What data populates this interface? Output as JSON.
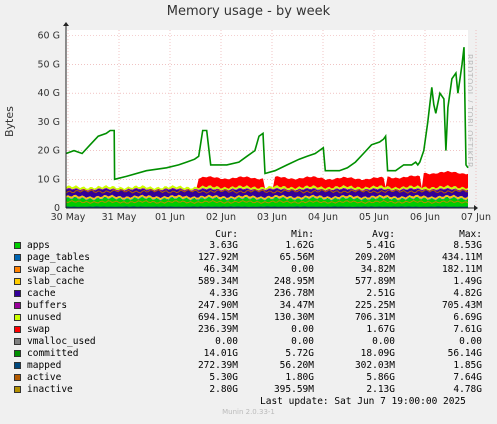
{
  "title": "Memory usage - by week",
  "side_text": "RRDTOOL / TOBI OETIKER",
  "footer_text": "Last update:  Sat Jun  7 19:00:00 2025",
  "munin_version": "Munin 2.0.33-1",
  "chart_data": {
    "type": "area",
    "title": "Memory usage - by week",
    "ylabel": "Bytes",
    "ylim": [
      0,
      62
    ],
    "y_ticks": [
      "0",
      "10 G",
      "20 G",
      "30 G",
      "40 G",
      "50 G",
      "60 G"
    ],
    "x_ticks": [
      "30 May",
      "31 May",
      "01 Jun",
      "02 Jun",
      "03 Jun",
      "04 Jun",
      "05 Jun",
      "06 Jun",
      "07 Jun"
    ],
    "grid": true,
    "legend_position": "bottom",
    "legend_headers": [
      "Cur:",
      "Min:",
      "Avg:",
      "Max:"
    ],
    "series": [
      {
        "name": "apps",
        "color": "#00cc00",
        "cur": "3.63G",
        "min": "1.62G",
        "avg": "5.41G",
        "max": "8.53G"
      },
      {
        "name": "page_tables",
        "color": "#0066b3",
        "cur": "127.92M",
        "min": "65.56M",
        "avg": "209.20M",
        "max": "434.11M"
      },
      {
        "name": "swap_cache",
        "color": "#ff8000",
        "cur": "46.34M",
        "min": "0.00",
        "avg": "34.82M",
        "max": "182.11M"
      },
      {
        "name": "slab_cache",
        "color": "#ffcc00",
        "cur": "589.34M",
        "min": "248.95M",
        "avg": "577.89M",
        "max": "1.49G"
      },
      {
        "name": "cache",
        "color": "#330099",
        "cur": "4.33G",
        "min": "236.78M",
        "avg": "2.51G",
        "max": "4.82G"
      },
      {
        "name": "buffers",
        "color": "#990099",
        "cur": "247.90M",
        "min": "34.47M",
        "avg": "225.25M",
        "max": "705.43M"
      },
      {
        "name": "unused",
        "color": "#ccff00",
        "cur": "694.15M",
        "min": "130.30M",
        "avg": "706.31M",
        "max": "6.69G"
      },
      {
        "name": "swap",
        "color": "#ff0000",
        "cur": "236.39M",
        "min": "0.00",
        "avg": "1.67G",
        "max": "7.61G"
      },
      {
        "name": "vmalloc_used",
        "color": "#808080",
        "cur": "0.00",
        "min": "0.00",
        "avg": "0.00",
        "max": "0.00"
      },
      {
        "name": "committed",
        "color": "#008f00",
        "cur": "14.01G",
        "min": "5.72G",
        "avg": "18.09G",
        "max": "56.14G"
      },
      {
        "name": "mapped",
        "color": "#00487d",
        "cur": "272.39M",
        "min": "56.20M",
        "avg": "302.03M",
        "max": "1.85G"
      },
      {
        "name": "active",
        "color": "#b35a00",
        "cur": "5.30G",
        "min": "1.80G",
        "avg": "5.86G",
        "max": "7.64G"
      },
      {
        "name": "inactive",
        "color": "#b38f00",
        "cur": "2.80G",
        "min": "395.59M",
        "avg": "2.13G",
        "max": "4.78G"
      }
    ],
    "committed_profile": [
      [
        0,
        19
      ],
      [
        0.02,
        20
      ],
      [
        0.04,
        19
      ],
      [
        0.06,
        22
      ],
      [
        0.08,
        25
      ],
      [
        0.1,
        26
      ],
      [
        0.11,
        27
      ],
      [
        0.12,
        27
      ],
      [
        0.121,
        10
      ],
      [
        0.15,
        11
      ],
      [
        0.2,
        13
      ],
      [
        0.25,
        14
      ],
      [
        0.28,
        15
      ],
      [
        0.3,
        16
      ],
      [
        0.32,
        17
      ],
      [
        0.33,
        18
      ],
      [
        0.34,
        27
      ],
      [
        0.35,
        27
      ],
      [
        0.36,
        15
      ],
      [
        0.4,
        15
      ],
      [
        0.43,
        16
      ],
      [
        0.45,
        18
      ],
      [
        0.47,
        20
      ],
      [
        0.48,
        25
      ],
      [
        0.49,
        26
      ],
      [
        0.495,
        12
      ],
      [
        0.52,
        13
      ],
      [
        0.55,
        15
      ],
      [
        0.58,
        17
      ],
      [
        0.6,
        18
      ],
      [
        0.62,
        19
      ],
      [
        0.63,
        20
      ],
      [
        0.64,
        21
      ],
      [
        0.645,
        13
      ],
      [
        0.68,
        13
      ],
      [
        0.7,
        14
      ],
      [
        0.72,
        16
      ],
      [
        0.74,
        19
      ],
      [
        0.76,
        22
      ],
      [
        0.78,
        23
      ],
      [
        0.79,
        24
      ],
      [
        0.795,
        25
      ],
      [
        0.8,
        13
      ],
      [
        0.82,
        13
      ],
      [
        0.84,
        15
      ],
      [
        0.86,
        15
      ],
      [
        0.87,
        16
      ],
      [
        0.875,
        15
      ],
      [
        0.88,
        16
      ],
      [
        0.89,
        20
      ],
      [
        0.9,
        30
      ],
      [
        0.91,
        42
      ],
      [
        0.915,
        36
      ],
      [
        0.92,
        33
      ],
      [
        0.93,
        40
      ],
      [
        0.94,
        38
      ],
      [
        0.945,
        20
      ],
      [
        0.95,
        35
      ],
      [
        0.96,
        45
      ],
      [
        0.97,
        47
      ],
      [
        0.975,
        40
      ],
      [
        0.98,
        45
      ],
      [
        0.985,
        50
      ],
      [
        0.99,
        56
      ],
      [
        0.995,
        15
      ],
      [
        1.0,
        14
      ]
    ]
  }
}
